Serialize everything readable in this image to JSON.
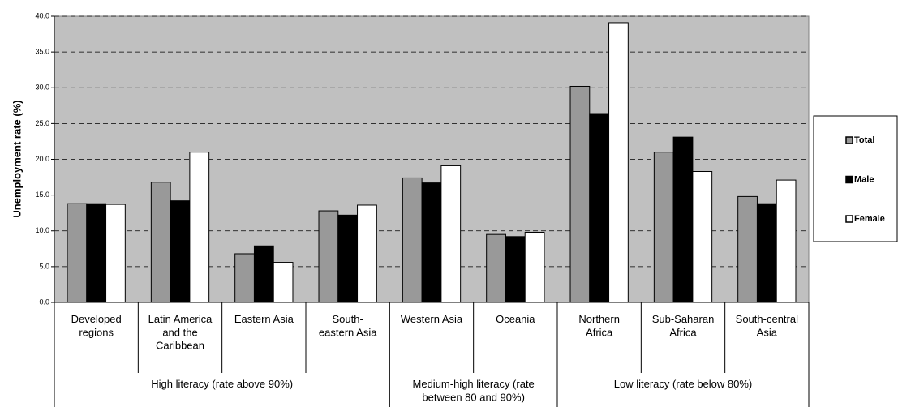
{
  "chart_data": {
    "type": "bar",
    "y_label": "Unemployment rate (%)",
    "categories": [
      "Developed\nregions",
      "Latin America\nand the\nCaribbean",
      "Eastern Asia",
      "South-\neastern Asia",
      "Western Asia",
      "Oceania",
      "Northern\nAfrica",
      "Sub-Saharan\nAfrica",
      "South-central\nAsia"
    ],
    "groups": [
      {
        "label": "High literacy (rate above 90%)",
        "count": 4
      },
      {
        "label": "Medium-high literacy (rate\nbetween 80 and 90%)",
        "count": 2
      },
      {
        "label": "Low literacy (rate below 80%)",
        "count": 3
      }
    ],
    "series": [
      {
        "name": "Total",
        "color": "#999999",
        "values": [
          13.8,
          16.8,
          6.8,
          12.8,
          17.4,
          9.5,
          30.2,
          21.0,
          14.8
        ]
      },
      {
        "name": "Male",
        "color": "#000000",
        "values": [
          13.8,
          14.2,
          7.9,
          12.2,
          16.7,
          9.2,
          26.4,
          23.1,
          13.8
        ]
      },
      {
        "name": "Female",
        "color": "#ffffff",
        "values": [
          13.7,
          21.0,
          5.6,
          13.6,
          19.1,
          9.8,
          39.1,
          18.3,
          17.1
        ]
      }
    ],
    "ylim": [
      0,
      40
    ],
    "yticks": [
      {
        "value": 0,
        "label": "0.0"
      },
      {
        "value": 5,
        "label": "5.0"
      },
      {
        "value": 10,
        "label": "10.0"
      },
      {
        "value": 15,
        "label": "15.0"
      },
      {
        "value": 20,
        "label": "20.0"
      },
      {
        "value": 25,
        "label": "25.0"
      },
      {
        "value": 30,
        "label": "30.0"
      },
      {
        "value": 35,
        "label": "35.0"
      },
      {
        "value": 40,
        "label": "40.0"
      }
    ],
    "grid": true,
    "legend": "right",
    "plot_background": "#c0c0c0"
  }
}
